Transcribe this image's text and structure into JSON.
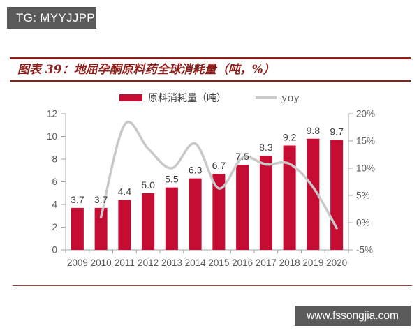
{
  "watermark_top": "TG: MYYJJPP",
  "watermark_bottom": "www.fssongjia.com",
  "figure": {
    "title": "图表 39：地屈孕酮原料药全球消耗量（吨，%）"
  },
  "legend": {
    "bars": "原料消耗量（吨）",
    "line": "yoy"
  },
  "colors": {
    "bar": "#c50d33",
    "line": "#c9c9c9",
    "dark_red": "#8e1e1a",
    "axis": "#a6a6a6",
    "axis_text": "#595959",
    "banner_bg": "#5a5a5a"
  },
  "chart_data": {
    "type": "bar",
    "subtype": "bar-line-combo",
    "title": "地屈孕酮原料药全球消耗量（吨，%）",
    "categories": [
      "2009",
      "2010",
      "2011",
      "2012",
      "2013",
      "2014",
      "2015",
      "2016",
      "2017",
      "2018",
      "2019",
      "2020"
    ],
    "series": [
      {
        "name": "原料消耗量（吨）",
        "type": "bar",
        "axis": "left",
        "values": [
          3.7,
          3.7,
          4.4,
          5.0,
          5.5,
          6.3,
          6.7,
          7.5,
          8.3,
          9.2,
          9.8,
          9.7
        ]
      },
      {
        "name": "yoy",
        "type": "line",
        "axis": "right",
        "values": [
          null,
          1.0,
          18.0,
          13.6,
          10.0,
          14.5,
          6.3,
          11.9,
          10.7,
          10.8,
          6.5,
          -1.0
        ]
      }
    ],
    "xlabel": "",
    "ylabel_left": "吨",
    "ylabel_right": "%",
    "left_axis": {
      "min": 0,
      "max": 12,
      "step": 2
    },
    "right_axis": {
      "min": -5,
      "max": 20,
      "step": 5,
      "suffix": "%"
    },
    "grid": false,
    "legend_position": "top",
    "data_labels": true
  }
}
